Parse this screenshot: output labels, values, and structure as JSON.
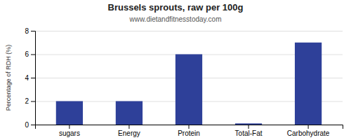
{
  "chart_data": {
    "type": "bar",
    "title": "Brussels sprouts, raw per 100g",
    "subtitle": "www.dietandfitnesstoday.com",
    "ylabel": "Percentage of RDH (%)",
    "categories": [
      "sugars",
      "Energy",
      "Protein",
      "Total-Fat",
      "Carbohydrate"
    ],
    "values": [
      2.0,
      2.0,
      6.0,
      0.1,
      7.0
    ],
    "color": "#2e4099",
    "ylim": [
      0,
      8
    ],
    "yticks": [
      0,
      2,
      4,
      6,
      8
    ],
    "grid": true
  }
}
